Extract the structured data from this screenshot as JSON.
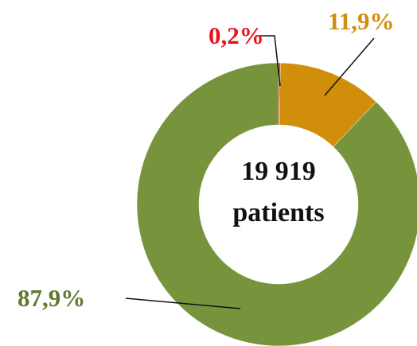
{
  "chart_data": {
    "type": "donut",
    "values": [
      0.2,
      11.9,
      87.9
    ],
    "value_labels": [
      "0,2%",
      "11,9%",
      "87,9%"
    ],
    "colors": [
      "#e8141e",
      "#d08e0b",
      "#77943d"
    ],
    "center_text": [
      "19 919",
      "patients"
    ]
  }
}
